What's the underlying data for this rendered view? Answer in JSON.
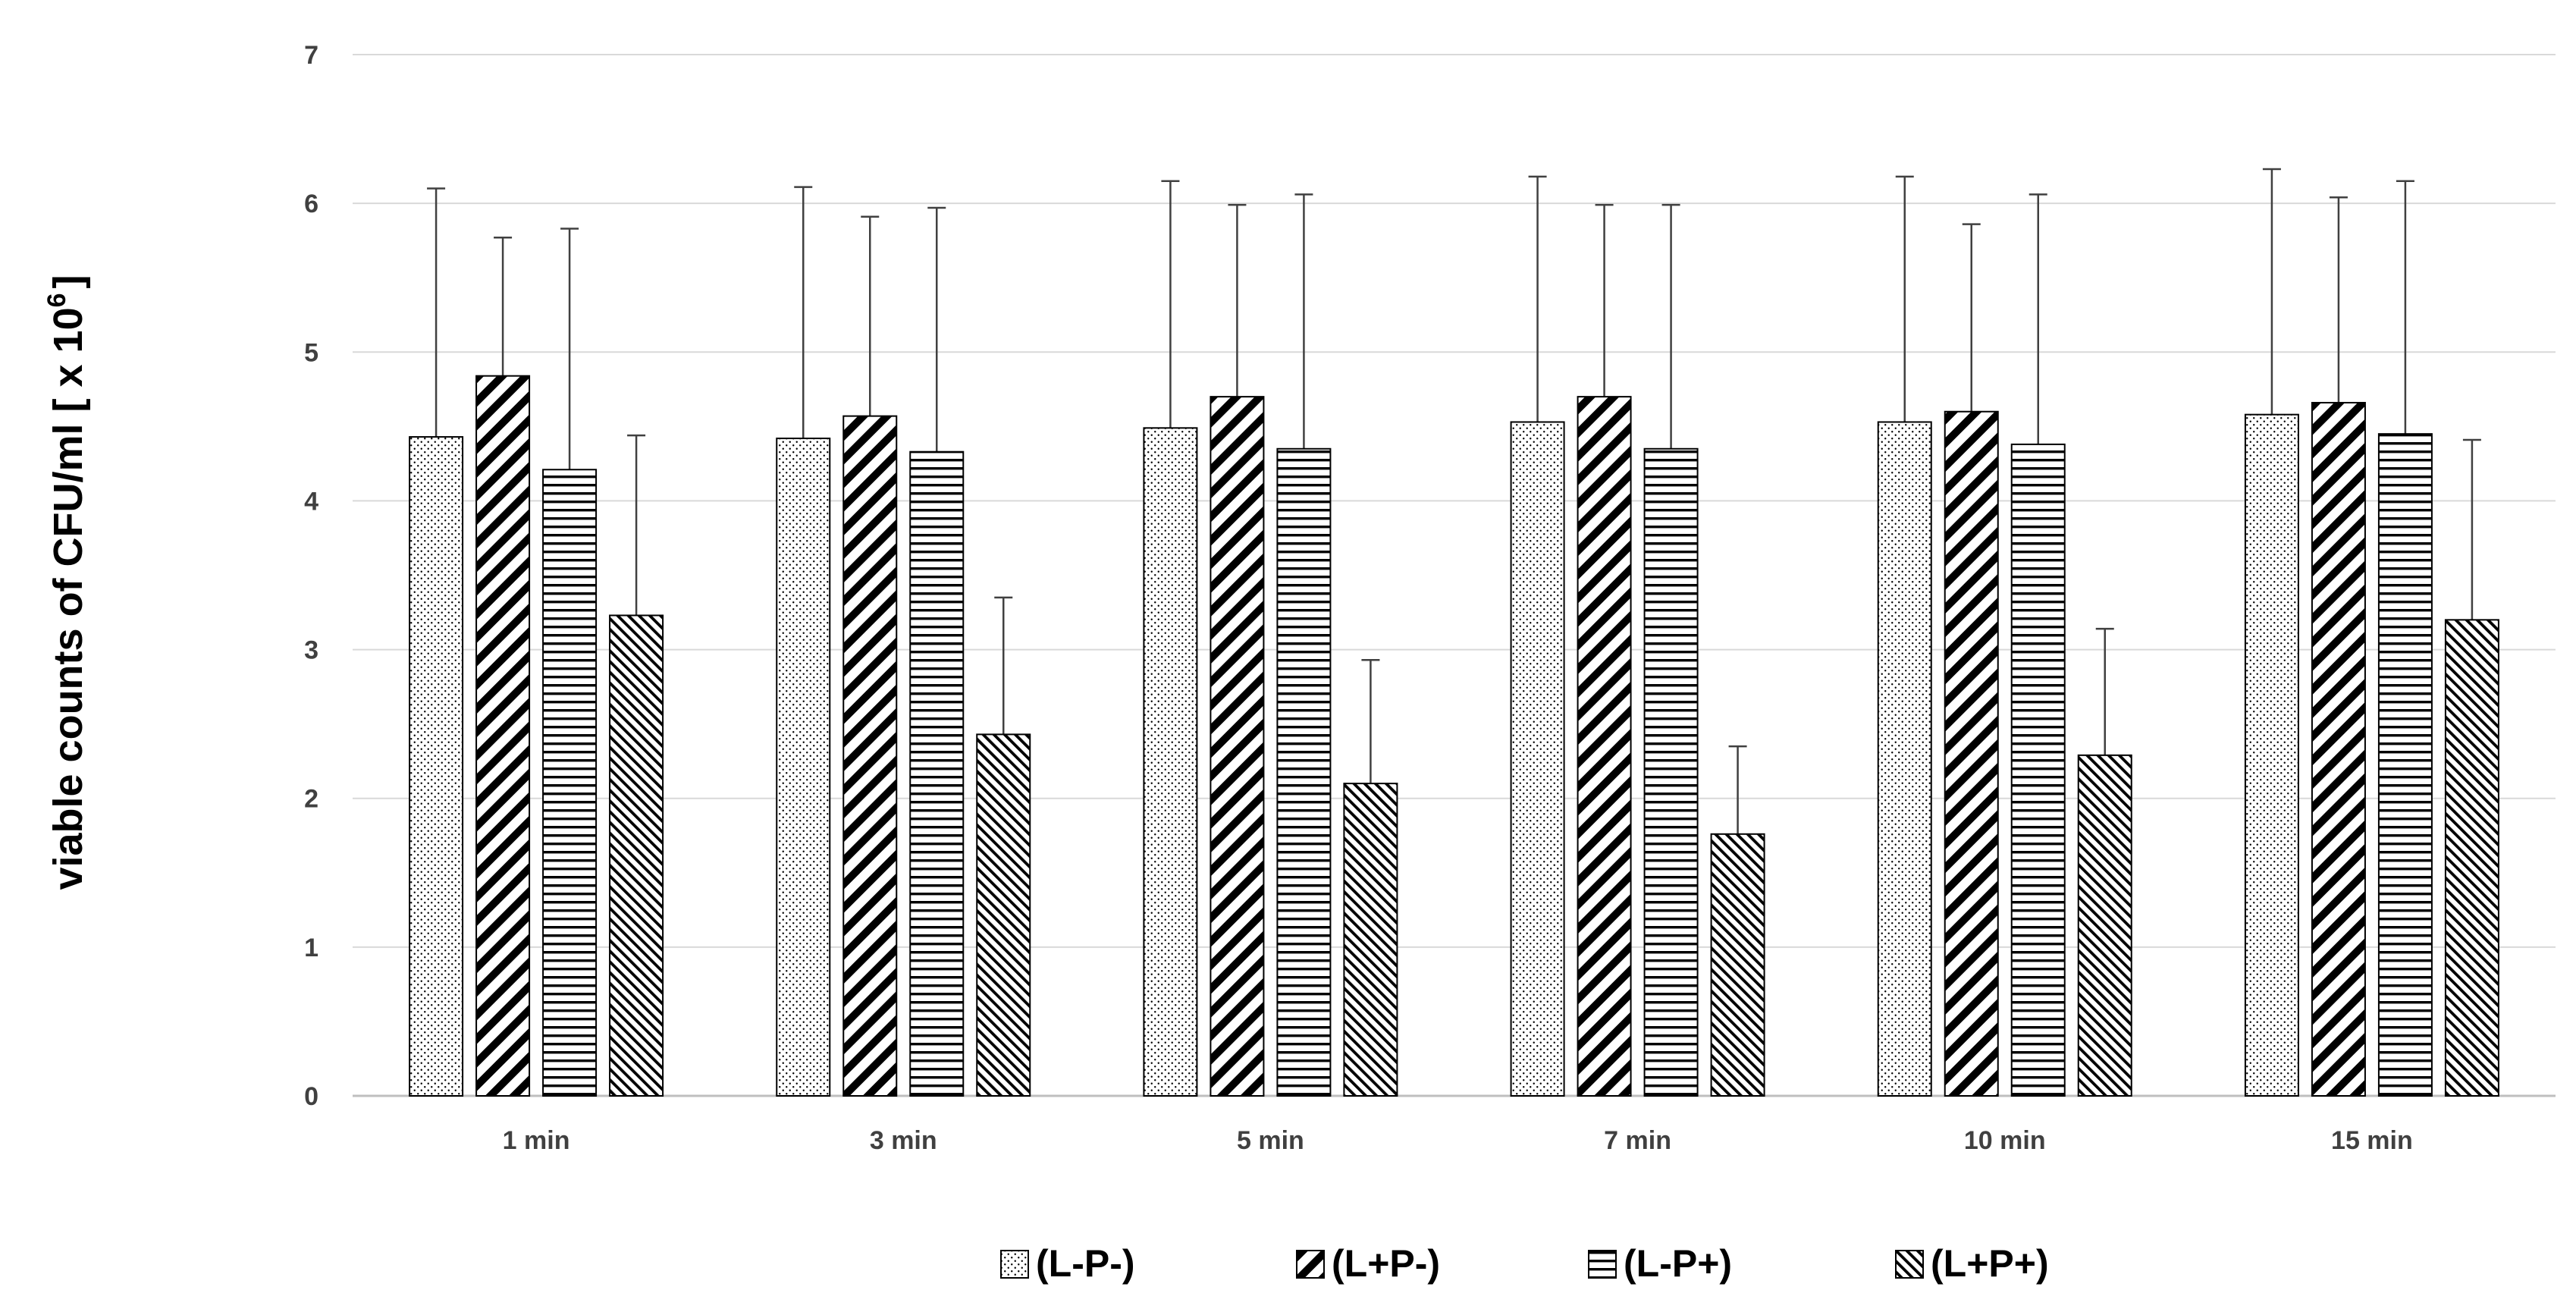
{
  "chart_data": {
    "type": "bar",
    "title": "",
    "xlabel": "",
    "ylabel": "viable counts of CFU/ml [ x 10",
    "ylabel_superscript": "6",
    "ylabel_suffix": "]",
    "ylim": [
      0,
      7
    ],
    "yticks": [
      0,
      1,
      2,
      3,
      4,
      5,
      6,
      7
    ],
    "grid": true,
    "legend_position": "bottom",
    "categories": [
      "1 min",
      "3 min",
      "5 min",
      "7 min",
      "10 min",
      "15 min"
    ],
    "series": [
      {
        "name": "(L-P-)",
        "pattern": "dots",
        "values": [
          4.43,
          4.42,
          4.49,
          4.53,
          4.53,
          4.58
        ],
        "errors": [
          1.67,
          1.69,
          1.66,
          1.65,
          1.65,
          1.65
        ]
      },
      {
        "name": "(L+P-)",
        "pattern": "wide-diagonal",
        "values": [
          4.84,
          4.57,
          4.7,
          4.7,
          4.6,
          4.66
        ],
        "errors": [
          0.93,
          1.34,
          1.29,
          1.29,
          1.26,
          1.38
        ]
      },
      {
        "name": "(L-P+)",
        "pattern": "horizontal",
        "values": [
          4.21,
          4.33,
          4.35,
          4.35,
          4.38,
          4.45
        ],
        "errors": [
          1.62,
          1.64,
          1.71,
          1.64,
          1.68,
          1.7
        ]
      },
      {
        "name": "(L+P+)",
        "pattern": "dense-diagonal",
        "values": [
          3.23,
          2.43,
          2.1,
          1.76,
          2.29,
          3.2
        ],
        "errors": [
          1.21,
          0.92,
          0.83,
          0.59,
          0.85,
          1.21
        ]
      }
    ]
  },
  "colors": {
    "grid": "#d9d9d9",
    "axis": "#bfbfbf",
    "bar_edge": "#000000",
    "error_bar": "#404040"
  }
}
